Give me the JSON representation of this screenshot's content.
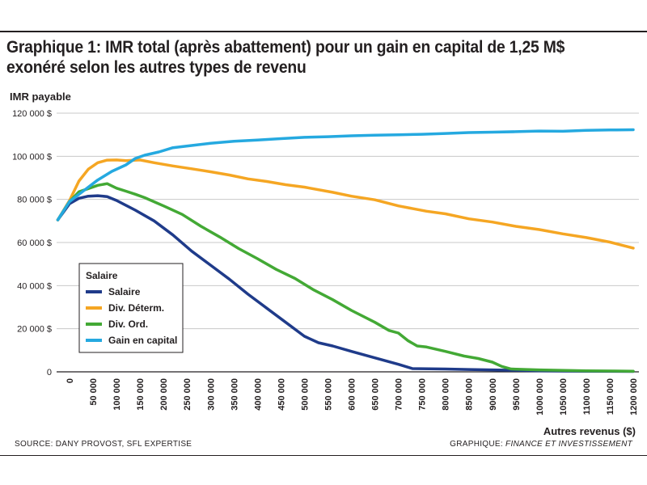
{
  "title_line1": "Graphique 1: IMR total (après abattement) pour un gain en capital de 1,25 M$",
  "title_line2": "exonéré selon les autres types de revenu",
  "source_text": "SOURCE: DANY PROVOST, SFL EXPERTISE",
  "credit_prefix": "GRAPHIQUE: ",
  "credit_name": "FINANCE ET INVESTISSEMENT",
  "colors": {
    "salaire": "#1f3b8a",
    "div_determ": "#f5a623",
    "div_ord": "#43a935",
    "gain_capital": "#25a9e0",
    "grid": "#c8c8c8",
    "text": "#231f20"
  },
  "chart_data": {
    "type": "line",
    "ylabel": "IMR payable",
    "xlabel": "Autres revenus ($)",
    "xlim": [
      0,
      1200000
    ],
    "ylim": [
      0,
      120000
    ],
    "grid": "horizontal",
    "y_ticks": [
      {
        "value": 0,
        "label": "0"
      },
      {
        "value": 20000,
        "label": "20 000 $"
      },
      {
        "value": 40000,
        "label": "40 000 $"
      },
      {
        "value": 60000,
        "label": "60 000 $"
      },
      {
        "value": 80000,
        "label": "80 000 $"
      },
      {
        "value": 100000,
        "label": "100 000 $"
      },
      {
        "value": 120000,
        "label": "120 000 $"
      }
    ],
    "x_ticks": [
      {
        "value": 0,
        "label": "0"
      },
      {
        "value": 50000,
        "label": "50 000"
      },
      {
        "value": 100000,
        "label": "100 000"
      },
      {
        "value": 150000,
        "label": "150 000"
      },
      {
        "value": 200000,
        "label": "200 000"
      },
      {
        "value": 250000,
        "label": "250 000"
      },
      {
        "value": 300000,
        "label": "300 000"
      },
      {
        "value": 350000,
        "label": "350 000"
      },
      {
        "value": 400000,
        "label": "400 000"
      },
      {
        "value": 450000,
        "label": "450 000"
      },
      {
        "value": 500000,
        "label": "500 000"
      },
      {
        "value": 550000,
        "label": "550 000"
      },
      {
        "value": 600000,
        "label": "600 000"
      },
      {
        "value": 650000,
        "label": "650 000"
      },
      {
        "value": 700000,
        "label": "700 000"
      },
      {
        "value": 750000,
        "label": "750 000"
      },
      {
        "value": 800000,
        "label": "800 000"
      },
      {
        "value": 850000,
        "label": "850 000"
      },
      {
        "value": 900000,
        "label": "900 000"
      },
      {
        "value": 950000,
        "label": "950 000"
      },
      {
        "value": 1000000,
        "label": "1000 000"
      },
      {
        "value": 1050000,
        "label": "1050 000"
      },
      {
        "value": 1100000,
        "label": "1100 000"
      },
      {
        "value": 1150000,
        "label": "1150 000"
      },
      {
        "value": 1200000,
        "label": "1200 000"
      }
    ],
    "legend": {
      "title": "Salaire",
      "placement": "lower-left"
    },
    "series": [
      {
        "name": "Salaire",
        "color": "#1f3b8a",
        "points": [
          [
            -25000,
            70500
          ],
          [
            0,
            78000
          ],
          [
            20000,
            80500
          ],
          [
            40000,
            81500
          ],
          [
            60000,
            81700
          ],
          [
            80000,
            81300
          ],
          [
            100000,
            79500
          ],
          [
            140000,
            75000
          ],
          [
            180000,
            70000
          ],
          [
            220000,
            63500
          ],
          [
            260000,
            56000
          ],
          [
            300000,
            49500
          ],
          [
            340000,
            43000
          ],
          [
            380000,
            36000
          ],
          [
            420000,
            29500
          ],
          [
            460000,
            23000
          ],
          [
            500000,
            16500
          ],
          [
            530000,
            13500
          ],
          [
            560000,
            12000
          ],
          [
            600000,
            9500
          ],
          [
            650000,
            6500
          ],
          [
            700000,
            3500
          ],
          [
            730000,
            1500
          ],
          [
            800000,
            1300
          ],
          [
            850000,
            1100
          ],
          [
            900000,
            900
          ],
          [
            950000,
            700
          ],
          [
            1000000,
            500
          ],
          [
            1100000,
            300
          ],
          [
            1200000,
            200
          ]
        ]
      },
      {
        "name": "Div. Déterm.",
        "color": "#f5a623",
        "points": [
          [
            -25000,
            70500
          ],
          [
            0,
            79500
          ],
          [
            20000,
            88500
          ],
          [
            40000,
            94000
          ],
          [
            60000,
            97000
          ],
          [
            80000,
            98200
          ],
          [
            100000,
            98300
          ],
          [
            120000,
            98000
          ],
          [
            150000,
            98300
          ],
          [
            180000,
            97000
          ],
          [
            220000,
            95500
          ],
          [
            260000,
            94200
          ],
          [
            300000,
            92800
          ],
          [
            340000,
            91300
          ],
          [
            380000,
            89500
          ],
          [
            420000,
            88300
          ],
          [
            460000,
            86800
          ],
          [
            500000,
            85700
          ],
          [
            560000,
            83300
          ],
          [
            600000,
            81500
          ],
          [
            650000,
            79800
          ],
          [
            700000,
            77000
          ],
          [
            760000,
            74500
          ],
          [
            800000,
            73300
          ],
          [
            850000,
            71000
          ],
          [
            900000,
            69500
          ],
          [
            950000,
            67500
          ],
          [
            1000000,
            66000
          ],
          [
            1050000,
            64000
          ],
          [
            1100000,
            62300
          ],
          [
            1150000,
            60200
          ],
          [
            1200000,
            57400
          ]
        ]
      },
      {
        "name": "Div. Ord.",
        "color": "#43a935",
        "points": [
          [
            -25000,
            70500
          ],
          [
            0,
            79000
          ],
          [
            20000,
            83500
          ],
          [
            40000,
            85000
          ],
          [
            60000,
            86500
          ],
          [
            80000,
            87300
          ],
          [
            100000,
            85200
          ],
          [
            120000,
            83800
          ],
          [
            140000,
            82400
          ],
          [
            160000,
            80800
          ],
          [
            200000,
            77000
          ],
          [
            240000,
            73000
          ],
          [
            280000,
            67500
          ],
          [
            320000,
            62500
          ],
          [
            360000,
            57200
          ],
          [
            400000,
            52500
          ],
          [
            440000,
            47500
          ],
          [
            480000,
            43300
          ],
          [
            520000,
            38000
          ],
          [
            560000,
            33500
          ],
          [
            600000,
            28500
          ],
          [
            650000,
            23000
          ],
          [
            680000,
            19200
          ],
          [
            700000,
            18000
          ],
          [
            720000,
            14500
          ],
          [
            740000,
            12000
          ],
          [
            760000,
            11500
          ],
          [
            800000,
            9500
          ],
          [
            840000,
            7300
          ],
          [
            870000,
            6200
          ],
          [
            900000,
            4500
          ],
          [
            920000,
            2500
          ],
          [
            940000,
            1300
          ],
          [
            1000000,
            900
          ],
          [
            1100000,
            500
          ],
          [
            1200000,
            300
          ]
        ]
      },
      {
        "name": "Gain en capital",
        "color": "#25a9e0",
        "points": [
          [
            -25000,
            70500
          ],
          [
            0,
            79000
          ],
          [
            30000,
            84000
          ],
          [
            60000,
            89000
          ],
          [
            90000,
            93000
          ],
          [
            120000,
            96000
          ],
          [
            140000,
            99000
          ],
          [
            160000,
            100500
          ],
          [
            190000,
            102000
          ],
          [
            220000,
            104000
          ],
          [
            260000,
            105000
          ],
          [
            300000,
            106000
          ],
          [
            350000,
            107000
          ],
          [
            400000,
            107500
          ],
          [
            450000,
            108200
          ],
          [
            500000,
            108800
          ],
          [
            550000,
            109100
          ],
          [
            600000,
            109500
          ],
          [
            650000,
            109800
          ],
          [
            700000,
            110000
          ],
          [
            750000,
            110200
          ],
          [
            800000,
            110600
          ],
          [
            850000,
            111000
          ],
          [
            900000,
            111200
          ],
          [
            950000,
            111400
          ],
          [
            1000000,
            111700
          ],
          [
            1050000,
            111600
          ],
          [
            1100000,
            112000
          ],
          [
            1150000,
            112200
          ],
          [
            1200000,
            112300
          ]
        ]
      }
    ]
  }
}
